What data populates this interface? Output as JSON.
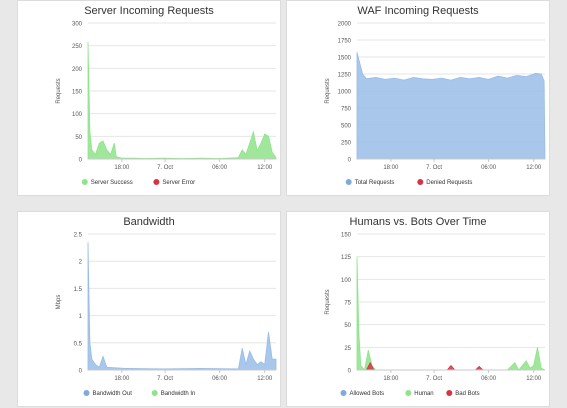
{
  "charts": [
    {
      "type": "area",
      "title": "Server Incoming Requests",
      "ylabel": "Requests",
      "ylim": [
        0,
        300
      ],
      "yticks": [
        "0",
        "50",
        "100",
        "150",
        "200",
        "250",
        "300"
      ],
      "xticks": [
        {
          "t": 0.18,
          "label": "18:00"
        },
        {
          "t": 0.41,
          "label": "7. Oct"
        },
        {
          "t": 0.7,
          "label": "06:00"
        },
        {
          "t": 0.94,
          "label": "12:00"
        }
      ],
      "legend": [
        {
          "name": "Server Success",
          "color": "#8fe38b"
        },
        {
          "name": "Server Error",
          "color": "#d63344"
        }
      ],
      "series": [
        {
          "name": "Server Success",
          "color": "#8fe38b",
          "points": [
            [
              0.0,
              258
            ],
            [
              0.01,
              60
            ],
            [
              0.02,
              20
            ],
            [
              0.04,
              10
            ],
            [
              0.06,
              35
            ],
            [
              0.08,
              40
            ],
            [
              0.1,
              20
            ],
            [
              0.12,
              10
            ],
            [
              0.14,
              35
            ],
            [
              0.15,
              5
            ],
            [
              0.18,
              2
            ],
            [
              0.25,
              2
            ],
            [
              0.3,
              1
            ],
            [
              0.4,
              2
            ],
            [
              0.5,
              1
            ],
            [
              0.6,
              2
            ],
            [
              0.7,
              1
            ],
            [
              0.8,
              3
            ],
            [
              0.82,
              20
            ],
            [
              0.84,
              10
            ],
            [
              0.86,
              35
            ],
            [
              0.88,
              60
            ],
            [
              0.9,
              18
            ],
            [
              0.92,
              35
            ],
            [
              0.94,
              55
            ],
            [
              0.96,
              50
            ],
            [
              0.98,
              15
            ],
            [
              1.0,
              3
            ]
          ]
        }
      ]
    },
    {
      "type": "area",
      "title": "WAF Incoming Requests",
      "ylabel": "Requests",
      "ylim": [
        0,
        2000
      ],
      "yticks": [
        "0",
        "250",
        "500",
        "750",
        "1000",
        "1250",
        "1500",
        "1750",
        "2000"
      ],
      "xticks": [
        {
          "t": 0.18,
          "label": "18:00"
        },
        {
          "t": 0.41,
          "label": "7. Oct"
        },
        {
          "t": 0.7,
          "label": "06:00"
        },
        {
          "t": 0.94,
          "label": "12:00"
        }
      ],
      "legend": [
        {
          "name": "Total Requests",
          "color": "#7eabdd"
        },
        {
          "name": "Denied Requests",
          "color": "#d63344"
        }
      ],
      "series": [
        {
          "name": "Total Requests",
          "color": "#99bde6",
          "points": [
            [
              0.0,
              1570
            ],
            [
              0.03,
              1250
            ],
            [
              0.05,
              1180
            ],
            [
              0.1,
              1200
            ],
            [
              0.15,
              1170
            ],
            [
              0.2,
              1190
            ],
            [
              0.25,
              1160
            ],
            [
              0.3,
              1200
            ],
            [
              0.35,
              1180
            ],
            [
              0.4,
              1170
            ],
            [
              0.45,
              1190
            ],
            [
              0.5,
              1160
            ],
            [
              0.55,
              1200
            ],
            [
              0.6,
              1180
            ],
            [
              0.65,
              1200
            ],
            [
              0.7,
              1170
            ],
            [
              0.75,
              1220
            ],
            [
              0.8,
              1190
            ],
            [
              0.85,
              1230
            ],
            [
              0.9,
              1210
            ],
            [
              0.95,
              1260
            ],
            [
              0.98,
              1250
            ],
            [
              0.995,
              1150
            ],
            [
              1.0,
              0
            ]
          ]
        }
      ]
    },
    {
      "type": "area",
      "title": "Bandwidth",
      "ylabel": "Mbps",
      "ylim": [
        0,
        2.5
      ],
      "yticks": [
        "0",
        "0.5",
        "1",
        "1.5",
        "2",
        "2.5"
      ],
      "xticks": [
        {
          "t": 0.18,
          "label": "18:00"
        },
        {
          "t": 0.41,
          "label": "7. Oct"
        },
        {
          "t": 0.7,
          "label": "06:00"
        },
        {
          "t": 0.94,
          "label": "12:00"
        }
      ],
      "legend": [
        {
          "name": "Bandwidth Out",
          "color": "#7eabdd"
        },
        {
          "name": "Bandwidth In",
          "color": "#8fe38b"
        }
      ],
      "series": [
        {
          "name": "Bandwidth Out",
          "color": "#99bde6",
          "points": [
            [
              0.0,
              2.35
            ],
            [
              0.01,
              0.5
            ],
            [
              0.02,
              0.2
            ],
            [
              0.04,
              0.1
            ],
            [
              0.06,
              0.05
            ],
            [
              0.08,
              0.25
            ],
            [
              0.1,
              0.05
            ],
            [
              0.2,
              0.03
            ],
            [
              0.4,
              0.02
            ],
            [
              0.6,
              0.03
            ],
            [
              0.8,
              0.02
            ],
            [
              0.82,
              0.4
            ],
            [
              0.84,
              0.1
            ],
            [
              0.86,
              0.35
            ],
            [
              0.88,
              0.2
            ],
            [
              0.9,
              0.1
            ],
            [
              0.92,
              0.15
            ],
            [
              0.94,
              0.1
            ],
            [
              0.96,
              0.7
            ],
            [
              0.98,
              0.2
            ],
            [
              1.0,
              0.2
            ]
          ]
        }
      ]
    },
    {
      "type": "area",
      "title": "Humans vs. Bots Over Time",
      "ylabel": "Requests",
      "ylim": [
        0,
        150
      ],
      "yticks": [
        "0",
        "25",
        "50",
        "75",
        "100",
        "125",
        "150"
      ],
      "xticks": [
        {
          "t": 0.18,
          "label": "18:00"
        },
        {
          "t": 0.41,
          "label": "7. Oct"
        },
        {
          "t": 0.7,
          "label": "06:00"
        },
        {
          "t": 0.94,
          "label": "12:00"
        }
      ],
      "legend": [
        {
          "name": "Allowed Bots",
          "color": "#7eabdd"
        },
        {
          "name": "Human",
          "color": "#8fe38b"
        },
        {
          "name": "Bad Bots",
          "color": "#d63344"
        }
      ],
      "series": [
        {
          "name": "Human",
          "color": "#8fe38b",
          "points": [
            [
              0.0,
              125
            ],
            [
              0.01,
              40
            ],
            [
              0.02,
              5
            ],
            [
              0.04,
              0
            ],
            [
              0.06,
              22
            ],
            [
              0.08,
              5
            ],
            [
              0.1,
              0
            ],
            [
              0.4,
              0
            ],
            [
              0.8,
              0
            ],
            [
              0.84,
              8
            ],
            [
              0.86,
              0
            ],
            [
              0.9,
              10
            ],
            [
              0.92,
              2
            ],
            [
              0.94,
              5
            ],
            [
              0.96,
              25
            ],
            [
              0.98,
              2
            ],
            [
              1.0,
              0
            ]
          ]
        },
        {
          "name": "Bad Bots",
          "color": "#d63344",
          "points": [
            [
              0.0,
              0
            ],
            [
              0.05,
              0
            ],
            [
              0.07,
              8
            ],
            [
              0.09,
              0
            ],
            [
              0.48,
              0
            ],
            [
              0.5,
              5
            ],
            [
              0.52,
              0
            ],
            [
              0.63,
              0
            ],
            [
              0.65,
              4
            ],
            [
              0.67,
              0
            ],
            [
              1.0,
              0
            ]
          ]
        }
      ]
    }
  ]
}
